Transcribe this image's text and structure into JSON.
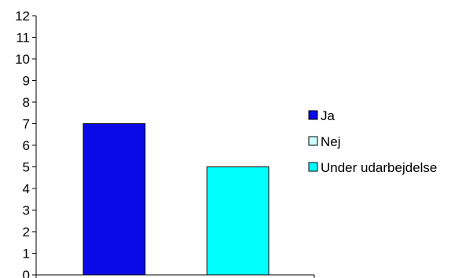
{
  "chart_data": {
    "type": "bar",
    "categories": [
      "Ja",
      "Nej",
      "Under udarbejdelse"
    ],
    "series": [
      {
        "name": "Ja",
        "value": 7,
        "color": "#0a0ae6"
      },
      {
        "name": "Nej",
        "value": 0,
        "color": "#ccffff"
      },
      {
        "name": "Under udarbejdelse",
        "value": 5,
        "color": "#00ffff"
      }
    ],
    "ylim": [
      0,
      12
    ],
    "yticks": [
      "0",
      "1",
      "2",
      "3",
      "4",
      "5",
      "6",
      "7",
      "8",
      "9",
      "10",
      "11",
      "12"
    ],
    "title": "",
    "xlabel": "",
    "ylabel": "",
    "grid": false,
    "legend_position": "right"
  }
}
